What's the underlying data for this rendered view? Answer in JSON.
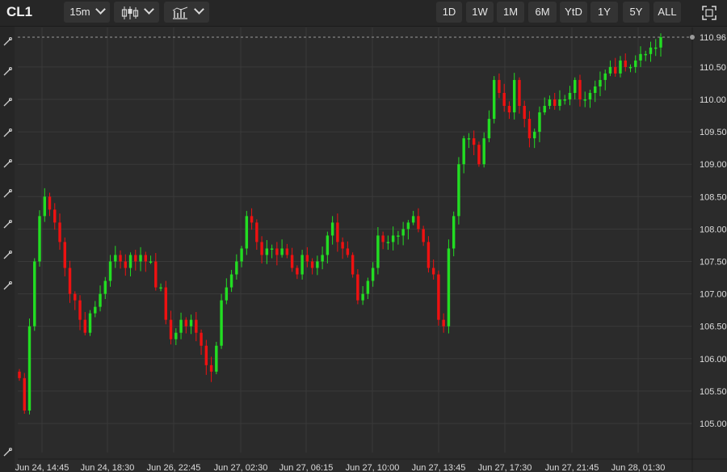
{
  "toolbar": {
    "symbol": "CL1",
    "interval": "15m",
    "chart_style_icon": "candlestick-icon",
    "indicators_icon": "indicators-icon",
    "ranges": [
      "1D",
      "1W",
      "1M",
      "6M",
      "YtD",
      "1Y",
      "5Y",
      "ALL"
    ],
    "fullscreen_icon": "fullscreen-icon"
  },
  "sidebar": {
    "tools": [
      "pencil-icon",
      "trendline-icon",
      "horizontal-line-icon",
      "fib-icon",
      "fan-icon",
      "arc-icon",
      "channel-icon",
      "gann-icon",
      "brush-icon",
      "eraser-icon"
    ]
  },
  "colors": {
    "up": "#22dd22",
    "down": "#ee1111",
    "background": "#2b2b2b",
    "grid": "#3a3a3a"
  },
  "chart_data": {
    "type": "candlestick",
    "symbol": "CL1",
    "interval": "15m",
    "last_price": "110.96",
    "ylim": [
      104.7,
      111.1
    ],
    "yticks": [
      "110.96",
      "110.50",
      "110.00",
      "109.50",
      "109.00",
      "108.50",
      "108.00",
      "107.50",
      "107.00",
      "106.50",
      "106.00",
      "105.50",
      "105.00"
    ],
    "xtick_labels": [
      "Jun 24, 14:45",
      "Jun 24, 18:30",
      "Jun 26, 22:45",
      "Jun 27, 02:30",
      "Jun 27, 06:15",
      "Jun 27, 10:00",
      "Jun 27, 13:45",
      "Jun 27, 17:30",
      "Jun 27, 21:45",
      "Jun 28, 01:30"
    ],
    "grid": true,
    "close_series": [
      105.7,
      105.2,
      106.5,
      107.5,
      108.2,
      108.5,
      108.3,
      108.1,
      107.8,
      107.4,
      107.0,
      106.9,
      106.6,
      106.4,
      106.7,
      106.8,
      107.0,
      107.2,
      107.5,
      107.6,
      107.5,
      107.4,
      107.6,
      107.5,
      107.6,
      107.5,
      107.5,
      107.1,
      107.1,
      106.6,
      106.3,
      106.4,
      106.6,
      106.5,
      106.6,
      106.4,
      106.2,
      105.9,
      105.8,
      106.2,
      106.9,
      107.1,
      107.3,
      107.5,
      107.7,
      108.2,
      108.1,
      107.8,
      107.6,
      107.7,
      107.7,
      107.6,
      107.7,
      107.6,
      107.4,
      107.3,
      107.6,
      107.5,
      107.4,
      107.5,
      107.6,
      107.9,
      108.1,
      107.8,
      107.7,
      107.6,
      107.3,
      106.9,
      107.0,
      107.2,
      107.4,
      107.9,
      107.8,
      107.8,
      107.9,
      107.9,
      108.0,
      108.1,
      108.2,
      108.0,
      107.8,
      107.4,
      107.3,
      106.6,
      106.5,
      107.7,
      108.2,
      109.0,
      109.4,
      109.4,
      109.3,
      109.0,
      109.4,
      109.7,
      110.3,
      110.1,
      109.9,
      109.8,
      110.3,
      109.9,
      109.7,
      109.4,
      109.5,
      109.8,
      109.9,
      110.0,
      109.9,
      110.0,
      110.0,
      110.1,
      110.3,
      110.0,
      110.0,
      110.1,
      110.2,
      110.3,
      110.4,
      110.5,
      110.4,
      110.6,
      110.5,
      110.5,
      110.6,
      110.7,
      110.7,
      110.8,
      110.8,
      110.96
    ]
  }
}
